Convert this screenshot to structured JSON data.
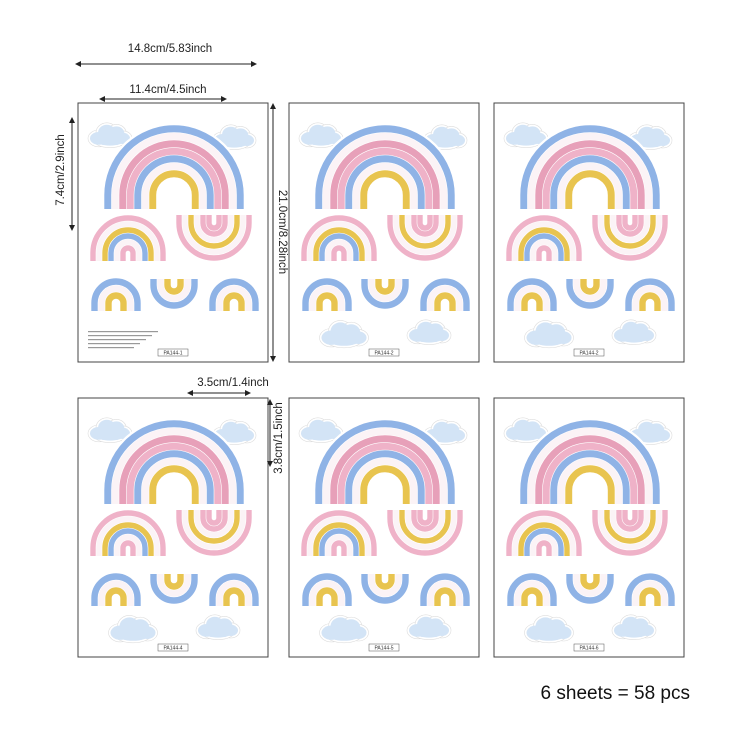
{
  "dimensions": {
    "sheet_width": "14.8cm/5.83inch",
    "rainbow_width": "11.4cm/4.5inch",
    "rainbow_height": "7.4cm/2.9inch",
    "sheet_height": "21.0cm/8.28inch",
    "small_width": "3.5cm/1.4inch",
    "small_height": "3.8cm/1.5inch"
  },
  "sheets": [
    "PA144-1",
    "PA144-2",
    "PA144-2",
    "PA144-4",
    "PA144-5",
    "PA144-6"
  ],
  "caption": "6 sheets = 58 pcs"
}
